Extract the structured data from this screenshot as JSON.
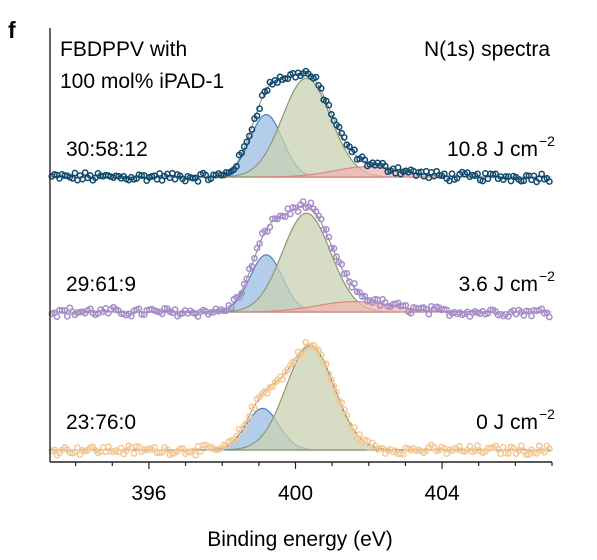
{
  "panel_label": "f",
  "chart_data": {
    "type": "line",
    "title_left": [
      "FBDPPV with",
      "100 mol% iPAD-1"
    ],
    "title_right": "N(1s) spectra",
    "xlabel": "Binding energy (eV)",
    "xlim": [
      393.3,
      407.0
    ],
    "xticks": [
      396,
      400,
      404
    ],
    "yaxis_visible": true,
    "ytick_labels_visible": false,
    "stacked_offset_spectra": true,
    "grid": false,
    "legend": "none",
    "colors": {
      "peak_low": "#9bbce3",
      "peak_mid": "#c9d1b2",
      "peak_high": "#f2b3b0"
    },
    "spectra": [
      {
        "label_ratio": "30:58:12",
        "label_fluence": "10.8 J cm",
        "fluence_exponent": "−2",
        "marker_color": "#0e4a6e",
        "components": [
          {
            "center": 399.2,
            "fwhm": 1.05,
            "height": 0.6
          },
          {
            "center": 400.3,
            "fwhm": 1.55,
            "height": 0.95
          },
          {
            "center": 402.0,
            "fwhm": 2.2,
            "height": 0.1
          }
        ]
      },
      {
        "label_ratio": "29:61:9",
        "label_fluence": "3.6 J cm",
        "fluence_exponent": "−2",
        "marker_color": "#a68cc8",
        "components": [
          {
            "center": 399.2,
            "fwhm": 1.05,
            "height": 0.55
          },
          {
            "center": 400.3,
            "fwhm": 1.55,
            "height": 0.95
          },
          {
            "center": 401.6,
            "fwhm": 2.4,
            "height": 0.1
          }
        ]
      },
      {
        "label_ratio": "23:76:0",
        "label_fluence": "0 J cm",
        "fluence_exponent": "−2",
        "marker_color": "#f5c893",
        "components": [
          {
            "center": 399.1,
            "fwhm": 1.05,
            "height": 0.4
          },
          {
            "center": 400.4,
            "fwhm": 1.55,
            "height": 1.0
          }
        ]
      }
    ]
  }
}
